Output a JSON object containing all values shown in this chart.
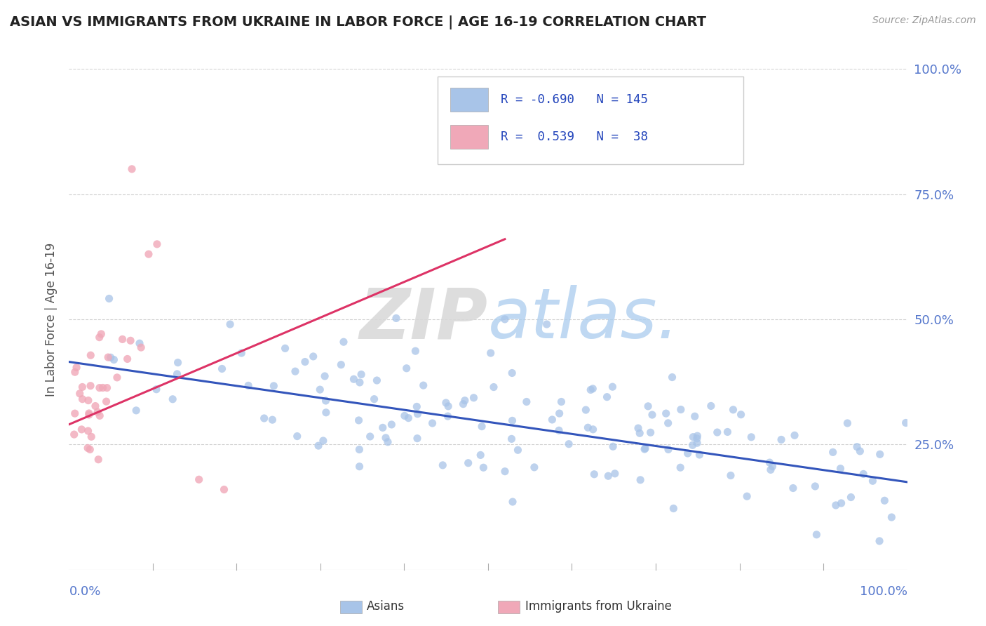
{
  "title": "ASIAN VS IMMIGRANTS FROM UKRAINE IN LABOR FORCE | AGE 16-19 CORRELATION CHART",
  "source": "Source: ZipAtlas.com",
  "ylabel": "In Labor Force | Age 16-19",
  "legend_blue_R": "-0.690",
  "legend_blue_N": "145",
  "legend_pink_R": "0.539",
  "legend_pink_N": "38",
  "blue_color": "#a8c4e8",
  "pink_color": "#f0a8b8",
  "blue_line_color": "#3355bb",
  "pink_line_color": "#dd3366",
  "watermark_zip": "ZIP",
  "watermark_atlas": "atlas.",
  "xmin": 0.0,
  "xmax": 1.0,
  "ymin": 0.0,
  "ymax": 1.0,
  "ytick_positions": [
    0.25,
    0.5,
    0.75,
    1.0
  ],
  "ytick_labels": [
    "25.0%",
    "50.0%",
    "75.0%",
    "100.0%"
  ],
  "blue_line_x0": 0.0,
  "blue_line_x1": 1.0,
  "blue_line_y0": 0.415,
  "blue_line_y1": 0.175,
  "pink_line_x0": 0.0,
  "pink_line_x1": 0.52,
  "pink_line_y0": 0.29,
  "pink_line_y1": 0.66
}
